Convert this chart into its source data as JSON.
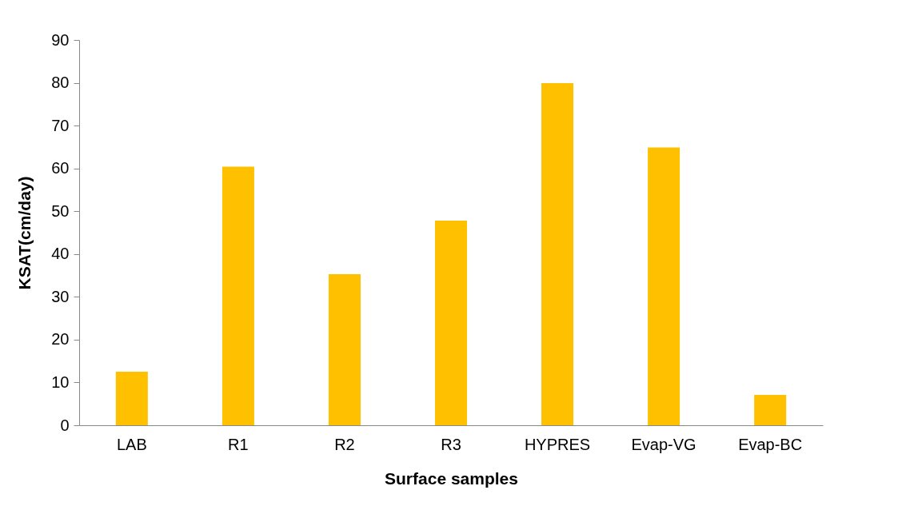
{
  "chart_data": {
    "type": "bar",
    "xlabel": "Surface samples",
    "ylabel": "KSAT(cm/day)",
    "categories": [
      "LAB",
      "R1",
      "R2",
      "R3",
      "HYPRES",
      "Evap-VG",
      "Evap-BC"
    ],
    "values": [
      12.5,
      60.4,
      35.3,
      47.8,
      79.9,
      64.9,
      7.1
    ],
    "color": "#ffc000",
    "ylim": [
      0,
      90
    ],
    "yticks": [
      0,
      10,
      20,
      30,
      40,
      50,
      60,
      70,
      80,
      90
    ],
    "grid": false
  }
}
